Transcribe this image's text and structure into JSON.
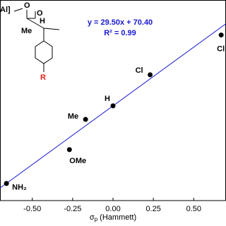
{
  "chart_data": {
    "type": "scatter",
    "x": [
      -0.66,
      -0.27,
      -0.17,
      0,
      0.23,
      0.67
    ],
    "series": [
      {
        "values": [
          50.9,
          59.4,
          67.0,
          70.4,
          78.2,
          88.2
        ],
        "color": "#000000"
      }
    ],
    "point_labels": [
      "NH₂",
      "OMe",
      "Me",
      "H",
      "Cl",
      "Cl"
    ],
    "fit": {
      "slope": 29.5,
      "intercept": 70.4,
      "color": "#1a1ad0"
    },
    "equation": "y = 29.50x + 70.40",
    "r_squared": "R² = 0.99",
    "x_label": {
      "symbol": "σ",
      "sub": "p",
      "rest": " (Hammett)"
    },
    "xlim": [
      -0.7,
      0.7
    ],
    "ylim": [
      46.6,
      97.0
    ],
    "xticks": [
      {
        "value": -0.5,
        "label": "-0.50"
      },
      {
        "value": -0.25,
        "label": "-0.25"
      },
      {
        "value": 0,
        "label": "0.00"
      },
      {
        "value": 0.25,
        "label": "0.25"
      },
      {
        "value": 0.5,
        "label": "0.50"
      }
    ],
    "structure": {
      "metal": "Al]",
      "o1": "O",
      "o2": "O",
      "h": "H",
      "me": "Me",
      "r": "R"
    }
  }
}
